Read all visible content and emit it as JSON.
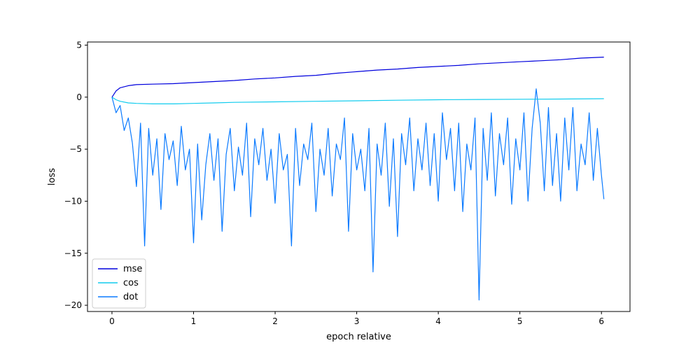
{
  "chart_data": {
    "type": "line",
    "title": "",
    "xlabel": "epoch relative",
    "ylabel": "loss",
    "xlim": [
      -0.3,
      6.35
    ],
    "ylim": [
      -20.6,
      5.3
    ],
    "xticks": [
      0,
      1,
      2,
      3,
      4,
      5,
      6
    ],
    "yticks": [
      5,
      0,
      -5,
      -10,
      -15,
      -20
    ],
    "grid": false,
    "legend_position": "lower-left",
    "series": [
      {
        "name": "mse",
        "color": "#0000dd",
        "x": [
          0,
          0.05,
          0.1,
          0.2,
          0.3,
          0.5,
          0.75,
          1.0,
          1.25,
          1.5,
          1.75,
          2.0,
          2.25,
          2.5,
          2.75,
          3.0,
          3.25,
          3.5,
          3.75,
          4.0,
          4.25,
          4.5,
          4.75,
          5.0,
          5.25,
          5.5,
          5.75,
          6.03
        ],
        "y": [
          0.0,
          0.6,
          0.9,
          1.1,
          1.2,
          1.25,
          1.3,
          1.4,
          1.5,
          1.6,
          1.75,
          1.85,
          2.0,
          2.1,
          2.3,
          2.45,
          2.6,
          2.7,
          2.85,
          2.95,
          3.05,
          3.2,
          3.3,
          3.4,
          3.5,
          3.6,
          3.75,
          3.85
        ]
      },
      {
        "name": "cos",
        "color": "#11ccee",
        "x": [
          0,
          0.05,
          0.1,
          0.2,
          0.3,
          0.5,
          0.75,
          1.0,
          1.25,
          1.5,
          2.0,
          2.5,
          3.0,
          3.5,
          4.0,
          4.5,
          5.0,
          5.5,
          6.03
        ],
        "y": [
          0.0,
          -0.25,
          -0.4,
          -0.55,
          -0.6,
          -0.65,
          -0.65,
          -0.6,
          -0.55,
          -0.5,
          -0.45,
          -0.4,
          -0.35,
          -0.3,
          -0.25,
          -0.22,
          -0.2,
          -0.18,
          -0.15
        ]
      },
      {
        "name": "dot",
        "color": "#0a7aff",
        "x": [
          0,
          0.05,
          0.1,
          0.15,
          0.2,
          0.25,
          0.3,
          0.35,
          0.4,
          0.45,
          0.5,
          0.55,
          0.6,
          0.65,
          0.7,
          0.75,
          0.8,
          0.85,
          0.9,
          0.95,
          1.0,
          1.05,
          1.1,
          1.15,
          1.2,
          1.25,
          1.3,
          1.35,
          1.4,
          1.45,
          1.5,
          1.55,
          1.6,
          1.65,
          1.7,
          1.75,
          1.8,
          1.85,
          1.9,
          1.95,
          2.0,
          2.05,
          2.1,
          2.15,
          2.2,
          2.25,
          2.3,
          2.35,
          2.4,
          2.45,
          2.5,
          2.55,
          2.6,
          2.65,
          2.7,
          2.75,
          2.8,
          2.85,
          2.9,
          2.95,
          3.0,
          3.05,
          3.1,
          3.15,
          3.2,
          3.25,
          3.3,
          3.35,
          3.4,
          3.45,
          3.5,
          3.55,
          3.6,
          3.65,
          3.7,
          3.75,
          3.8,
          3.85,
          3.9,
          3.95,
          4.0,
          4.05,
          4.1,
          4.15,
          4.2,
          4.25,
          4.3,
          4.35,
          4.4,
          4.45,
          4.5,
          4.55,
          4.6,
          4.65,
          4.7,
          4.75,
          4.8,
          4.85,
          4.9,
          4.95,
          5.0,
          5.05,
          5.1,
          5.15,
          5.2,
          5.25,
          5.3,
          5.35,
          5.4,
          5.45,
          5.5,
          5.55,
          5.6,
          5.65,
          5.7,
          5.75,
          5.8,
          5.85,
          5.9,
          5.95,
          6.0,
          6.03
        ],
        "y": [
          0.0,
          -1.5,
          -0.8,
          -3.2,
          -2.0,
          -4.4,
          -8.6,
          -2.5,
          -14.3,
          -3.0,
          -7.5,
          -4.0,
          -10.8,
          -3.5,
          -6.0,
          -4.2,
          -8.5,
          -2.8,
          -7.0,
          -5.0,
          -14.0,
          -4.5,
          -11.8,
          -6.5,
          -3.5,
          -8.0,
          -4.0,
          -12.9,
          -5.5,
          -3.0,
          -9.0,
          -4.8,
          -7.5,
          -2.5,
          -11.5,
          -4.0,
          -6.5,
          -3.0,
          -8.0,
          -5.0,
          -10.2,
          -3.5,
          -7.0,
          -5.5,
          -14.3,
          -3.0,
          -8.5,
          -4.5,
          -6.0,
          -2.5,
          -11.0,
          -5.0,
          -7.5,
          -3.0,
          -9.5,
          -4.5,
          -6.0,
          -2.0,
          -12.9,
          -3.5,
          -7.0,
          -5.0,
          -9.0,
          -3.0,
          -16.8,
          -4.5,
          -7.5,
          -2.5,
          -10.5,
          -4.0,
          -13.4,
          -3.5,
          -6.5,
          -2.0,
          -9.0,
          -4.0,
          -7.0,
          -2.5,
          -8.5,
          -3.5,
          -10.0,
          -1.5,
          -6.0,
          -3.0,
          -9.0,
          -2.5,
          -11.0,
          -4.5,
          -7.0,
          -2.0,
          -19.5,
          -3.0,
          -8.0,
          -1.5,
          -9.5,
          -3.5,
          -6.5,
          -2.0,
          -10.3,
          -4.0,
          -7.0,
          -1.5,
          -10.0,
          -3.0,
          0.8,
          -2.5,
          -9.0,
          -1.0,
          -8.5,
          -3.5,
          -10.0,
          -2.0,
          -7.0,
          -1.0,
          -9.0,
          -4.5,
          -6.5,
          -1.5,
          -8.0,
          -3.0,
          -7.5,
          -9.8
        ]
      }
    ]
  }
}
